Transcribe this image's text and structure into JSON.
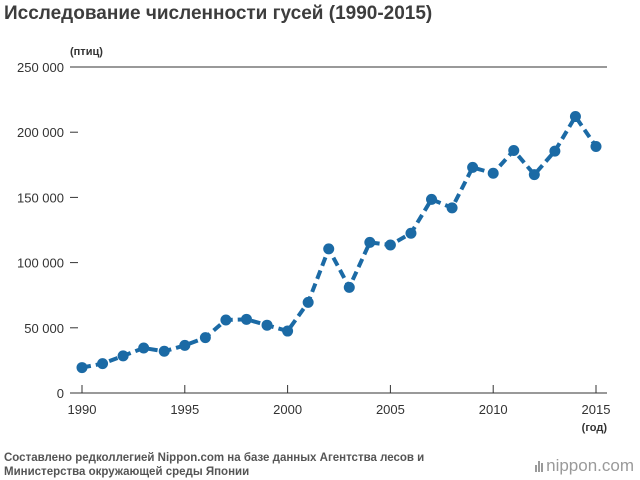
{
  "title": "Исследование численности гусей (1990-2015)",
  "source": "Составлено редколлегией Nippon.com на базе данных Агентства лесов и Министерства окружающей среды Японии",
  "logo": {
    "text": "nippon.com"
  },
  "colors": {
    "series": "#1b6aa5",
    "axis": "#333333",
    "text": "#333333"
  },
  "chart_data": {
    "type": "line",
    "title": "Исследование численности гусей (1990-2015)",
    "ylabel": "(птиц)",
    "xlabel": "(год)",
    "ylim": [
      0,
      250000
    ],
    "xlim": [
      1990,
      2015
    ],
    "grid": false,
    "line_style": "dashed",
    "y_ticks": [
      {
        "value": 0,
        "label": "0"
      },
      {
        "value": 50000,
        "label": "50 000"
      },
      {
        "value": 100000,
        "label": "100 000"
      },
      {
        "value": 150000,
        "label": "150 000"
      },
      {
        "value": 200000,
        "label": "200 000"
      },
      {
        "value": 250000,
        "label": "250 000"
      }
    ],
    "x_ticks": [
      {
        "value": 1990,
        "label": "1990"
      },
      {
        "value": 1995,
        "label": "1995"
      },
      {
        "value": 2000,
        "label": "2000"
      },
      {
        "value": 2005,
        "label": "2005"
      },
      {
        "value": 2010,
        "label": "2010"
      },
      {
        "value": 2015,
        "label": "2015"
      }
    ],
    "x": [
      1990,
      1991,
      1992,
      1993,
      1994,
      1995,
      1996,
      1997,
      1998,
      1999,
      2000,
      2001,
      2002,
      2003,
      2004,
      2005,
      2006,
      2007,
      2008,
      2009,
      2010,
      2011,
      2012,
      2013,
      2014,
      2015
    ],
    "series": [
      {
        "values": [
          19500,
          22500,
          28500,
          34500,
          32000,
          36500,
          42500,
          56000,
          56500,
          52000,
          47500,
          69500,
          110500,
          81000,
          115500,
          113500,
          122500,
          148500,
          142000,
          173000,
          168500,
          186000,
          167500,
          185500,
          212000,
          189000
        ]
      }
    ]
  }
}
